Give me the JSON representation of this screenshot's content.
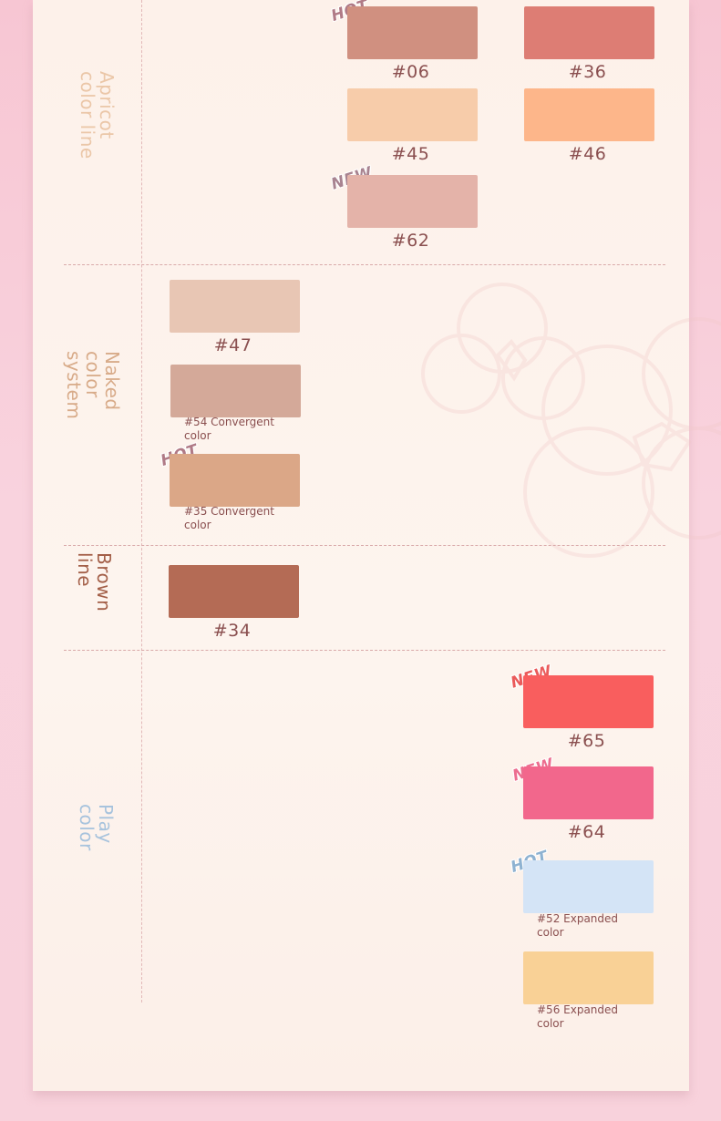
{
  "sections": {
    "apricot": {
      "label": "Apricot\ncolor line",
      "color": "#ebc7a8",
      "items": [
        {
          "code": "#06",
          "color": "#d09080",
          "tag": "HOT"
        },
        {
          "code": "#36",
          "color": "#dd7d74",
          "tag": ""
        },
        {
          "code": "#45",
          "color": "#f7ccaa",
          "tag": ""
        },
        {
          "code": "#46",
          "color": "#fdb68a",
          "tag": ""
        },
        {
          "code": "#62",
          "color": "#e4b3a9",
          "tag": "NEW"
        }
      ]
    },
    "naked": {
      "label": "Naked\ncolor\nsystem",
      "color": "#d8ab89",
      "items": [
        {
          "code": "#47",
          "color": "#e8c6b4",
          "tag": ""
        },
        {
          "code": "#54 Convergent color",
          "color": "#d4a999",
          "tag": ""
        },
        {
          "code": "#35 Convergent color",
          "color": "#dba787",
          "tag": "HOT"
        }
      ]
    },
    "brown": {
      "label": "Brown\nline",
      "color": "#a35f48",
      "items": [
        {
          "code": "#34",
          "color": "#b46b55",
          "tag": ""
        }
      ]
    },
    "play": {
      "label": "Play\ncolor",
      "color": "#a7c3dd",
      "items": [
        {
          "code": "#65",
          "color": "#f95e5e",
          "tag": "NEW"
        },
        {
          "code": "#64",
          "color": "#f2678c",
          "tag": "NEW"
        },
        {
          "code": "#52 Expanded color",
          "color": "#d4e4f6",
          "tag": "HOT"
        },
        {
          "code": "#56 Expanded color",
          "color": "#f9d196",
          "tag": ""
        }
      ]
    }
  }
}
